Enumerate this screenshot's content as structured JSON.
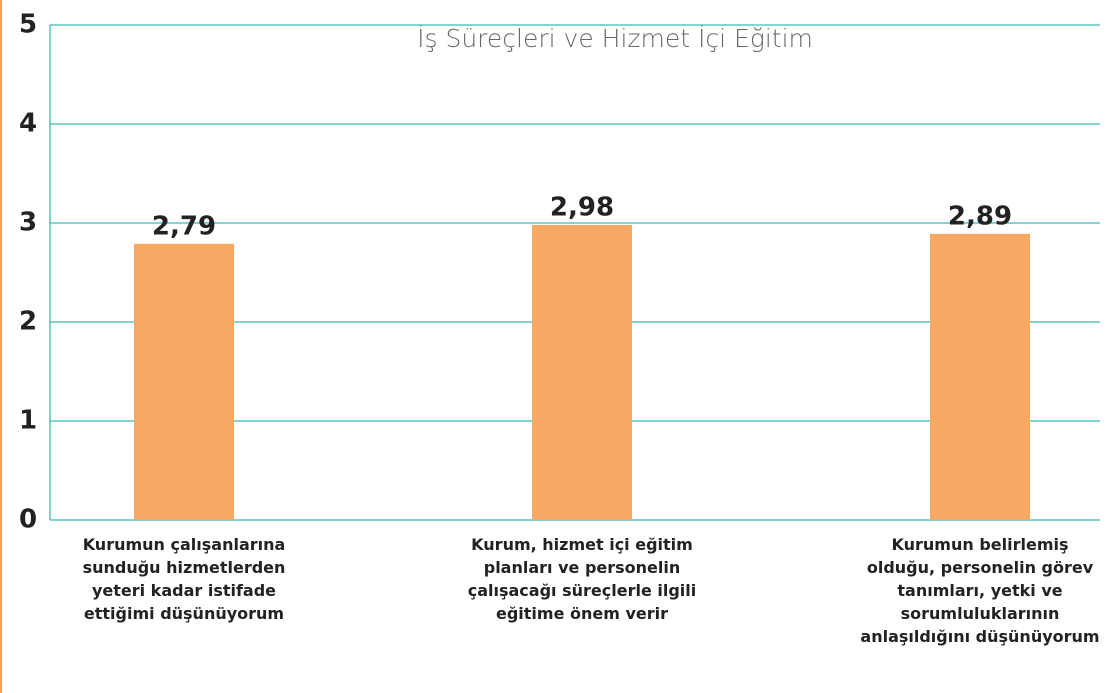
{
  "chart_data": {
    "type": "bar",
    "title": "İş Süreçleri ve Hizmet İçi Eğitim",
    "categories": [
      "Kurumun çalışanlarına sunduğu hizmetlerden yeteri kadar istifade ettiğimi düşünüyorum",
      "Kurum, hizmet içi eğitim planları ve personelin çalışacağı süreçlerle ilgili eğitime önem verir",
      "Kurumun belirlemiş olduğu, personelin görev tanımları, yetki ve sorumluluklarının anlaşıldığını düşünüyorum"
    ],
    "values": [
      2.79,
      2.98,
      2.89
    ],
    "value_labels": [
      "2,79",
      "2,98",
      "2,89"
    ],
    "color": "#f7a862",
    "ylim": [
      0,
      5
    ],
    "yticks": [
      0,
      1,
      2,
      3,
      4,
      5
    ],
    "grid": true
  }
}
